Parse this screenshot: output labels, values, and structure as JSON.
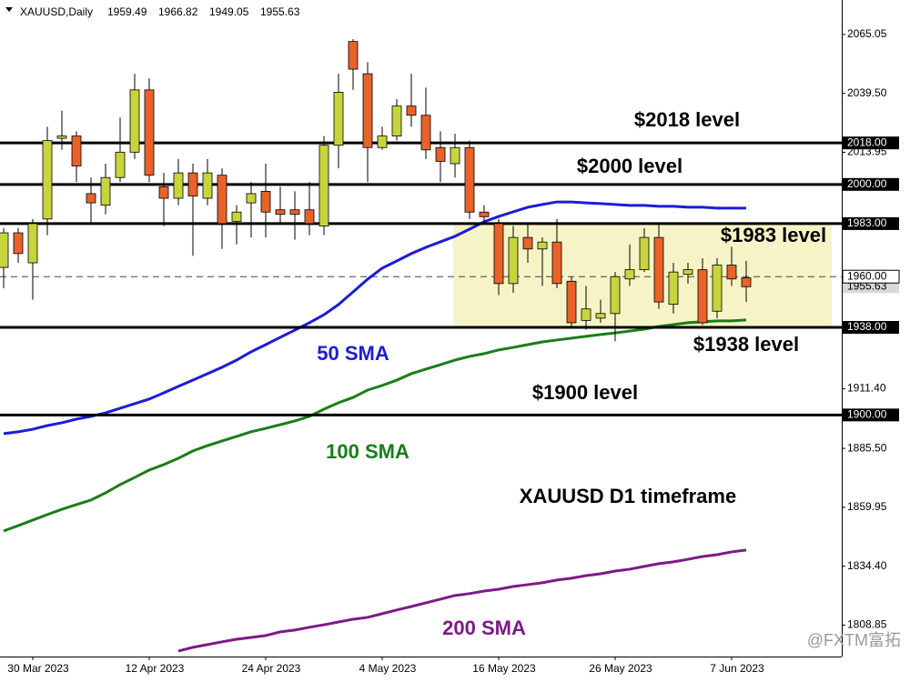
{
  "chart_data": {
    "type": "candlestick",
    "title": "XAUUSD,Daily",
    "categories": [
      null,
      null,
      "30 Mar 2023",
      null,
      null,
      null,
      null,
      null,
      null,
      null,
      "12 Apr 2023",
      null,
      null,
      null,
      null,
      null,
      null,
      null,
      "24 Apr 2023",
      null,
      null,
      null,
      null,
      null,
      null,
      null,
      "4 May 2023",
      null,
      null,
      null,
      null,
      null,
      null,
      null,
      "16 May 2023",
      null,
      null,
      null,
      null,
      null,
      null,
      null,
      "26 May 2023",
      null,
      null,
      null,
      null,
      null,
      null,
      null,
      "7 Jun 2023",
      null
    ],
    "ohlc": [
      [
        1964,
        1981,
        1955,
        1979
      ],
      [
        1979,
        1981,
        1966,
        1970
      ],
      [
        1966,
        1985,
        1950,
        1983
      ],
      [
        1985,
        2025,
        1978,
        2019
      ],
      [
        2020,
        2032,
        2015,
        2021
      ],
      [
        2021,
        2023,
        2001,
        2008
      ],
      [
        1996,
        2003,
        1983,
        1992
      ],
      [
        1991,
        2009,
        1987,
        2003
      ],
      [
        2003,
        2029,
        2001,
        2014
      ],
      [
        2014,
        2048,
        2011,
        2041
      ],
      [
        2041,
        2046,
        2001,
        2004
      ],
      [
        1999,
        2005,
        1982,
        1994
      ],
      [
        1994,
        2011,
        1991,
        2005
      ],
      [
        2005,
        2009,
        1969,
        1995
      ],
      [
        1994,
        2011,
        1991,
        2005
      ],
      [
        2004,
        2007,
        1972,
        1983
      ],
      [
        1984,
        1991,
        1974,
        1988
      ],
      [
        1992,
        2001,
        1977,
        1996
      ],
      [
        1997,
        2009,
        1977,
        1988
      ],
      [
        1989,
        1999,
        1983,
        1987
      ],
      [
        1989,
        1997,
        1976,
        1987
      ],
      [
        1989,
        2001,
        1978,
        1983
      ],
      [
        1982,
        2021,
        1978,
        2017
      ],
      [
        2017,
        2048,
        2007,
        2040
      ],
      [
        2062,
        2063,
        2041,
        2050
      ],
      [
        2048,
        2053,
        2001,
        2016
      ],
      [
        2016,
        2025,
        2015,
        2021
      ],
      [
        2021,
        2037,
        2019,
        2034
      ],
      [
        2034,
        2048,
        2025,
        2030
      ],
      [
        2030,
        2042,
        2011,
        2015
      ],
      [
        2016,
        2023,
        2001,
        2010
      ],
      [
        2009,
        2022,
        2003,
        2016
      ],
      [
        2016,
        2019,
        1985,
        1988
      ],
      [
        1988,
        1991,
        1983,
        1986
      ],
      [
        1983,
        1985,
        1952,
        1957
      ],
      [
        1957,
        1982,
        1953,
        1977
      ],
      [
        1977,
        1983,
        1966,
        1972
      ],
      [
        1972,
        1977,
        1956,
        1975
      ],
      [
        1975,
        1985,
        1955,
        1957
      ],
      [
        1958,
        1960,
        1938,
        1940
      ],
      [
        1941,
        1956,
        1937,
        1946
      ],
      [
        1942,
        1950,
        1940,
        1944
      ],
      [
        1944,
        1962,
        1932,
        1960
      ],
      [
        1959,
        1974,
        1956,
        1963
      ],
      [
        1963,
        1981,
        1962,
        1977
      ],
      [
        1977,
        1983,
        1946,
        1949
      ],
      [
        1948,
        1966,
        1944,
        1962
      ],
      [
        1961,
        1966,
        1957,
        1963
      ],
      [
        1963,
        1968,
        1939,
        1940
      ],
      [
        1945,
        1968,
        1942,
        1965
      ],
      [
        1965,
        1973,
        1956,
        1959
      ],
      [
        1959.49,
        1966.82,
        1949.05,
        1955.63
      ]
    ],
    "up_color": "#c8d43c",
    "down_color": "#e8622a",
    "series": [
      {
        "name": "50 SMA",
        "color": "#1c1cd8",
        "values": [
          1891.9,
          1892.7,
          1893.8,
          1895.4,
          1896.6,
          1898.2,
          1899.4,
          1900.9,
          1902.9,
          1904.9,
          1906.9,
          1909.6,
          1912.4,
          1915.1,
          1917.9,
          1920.7,
          1923.8,
          1927.4,
          1930.5,
          1933.7,
          1936.8,
          1940.0,
          1943.5,
          1947.9,
          1953.4,
          1958.9,
          1963.7,
          1966.8,
          1970.0,
          1972.7,
          1975.1,
          1977.5,
          1980.6,
          1983.8,
          1986.1,
          1988.1,
          1990.1,
          1991.3,
          1992.4,
          1992.4,
          1992.0,
          1991.7,
          1991.3,
          1990.9,
          1990.9,
          1990.5,
          1990.5,
          1990.1,
          1990.1,
          1989.7,
          1989.7,
          1989.7
        ]
      },
      {
        "name": "100 SMA",
        "color": "#1a7d1a",
        "values": [
          1849.7,
          1852.0,
          1854.4,
          1856.8,
          1859.1,
          1861.1,
          1863.1,
          1866.2,
          1869.8,
          1872.9,
          1876.1,
          1878.5,
          1881.2,
          1884.4,
          1886.7,
          1888.7,
          1890.7,
          1892.7,
          1894.2,
          1895.8,
          1897.4,
          1899.4,
          1902.5,
          1905.3,
          1907.6,
          1910.8,
          1912.8,
          1915.1,
          1917.9,
          1919.9,
          1921.8,
          1923.8,
          1925.4,
          1926.6,
          1928.2,
          1929.3,
          1930.5,
          1931.7,
          1932.5,
          1933.3,
          1934.1,
          1934.9,
          1935.6,
          1936.4,
          1937.2,
          1938.4,
          1939.2,
          1940.0,
          1940.4,
          1940.8,
          1940.8,
          1941.2
        ]
      },
      {
        "name": "200 SMA",
        "color": "#7d1a86",
        "values": [
          null,
          null,
          null,
          null,
          null,
          null,
          null,
          null,
          null,
          null,
          null,
          null,
          1797.6,
          1799.2,
          1800.4,
          1801.6,
          1802.7,
          1803.5,
          1804.3,
          1805.9,
          1806.7,
          1807.9,
          1809.0,
          1810.2,
          1811.4,
          1812.2,
          1813.8,
          1815.4,
          1816.9,
          1818.5,
          1820.1,
          1821.7,
          1822.5,
          1823.6,
          1824.4,
          1825.6,
          1826.4,
          1827.2,
          1828.4,
          1829.2,
          1830.3,
          1831.1,
          1832.3,
          1833.1,
          1834.3,
          1835.5,
          1836.3,
          1837.4,
          1838.6,
          1839.4,
          1840.6,
          1841.4
        ]
      }
    ],
    "ylim": [
      1796,
      2080
    ],
    "yticks": [
      {
        "value": 2065.05,
        "label": "2065.05"
      },
      {
        "value": 2039.5,
        "label": "2039.50"
      },
      {
        "value": 2013.95,
        "label": "2013.95"
      },
      {
        "value": 1911.4,
        "label": "1911.40"
      },
      {
        "value": 1885.5,
        "label": "1885.50"
      },
      {
        "value": 1859.95,
        "label": "1859.95"
      },
      {
        "value": 1834.4,
        "label": "1834.40"
      },
      {
        "value": 1808.85,
        "label": "1808.85"
      }
    ],
    "levels": [
      {
        "value": 2018,
        "label": "2018.00"
      },
      {
        "value": 2000,
        "label": "2000.00"
      },
      {
        "value": 1983,
        "label": "1983.00"
      },
      {
        "value": 1938,
        "label": "1938.00"
      },
      {
        "value": 1900,
        "label": "1900.00"
      }
    ],
    "level_color": "#000000",
    "range_zone": {
      "from": 1938,
      "to": 1983,
      "color": "#f6f4c6"
    },
    "dashed_level": {
      "value": 1960,
      "label": "1960.00"
    },
    "last_price": {
      "value": 1955.63,
      "label": "1955.63"
    },
    "annotations": [
      {
        "text": "$2018 level",
        "color": "#000000"
      },
      {
        "text": "$2000 level",
        "color": "#000000"
      },
      {
        "text": "$1983 level",
        "color": "#000000"
      },
      {
        "text": "$1938 level",
        "color": "#000000"
      },
      {
        "text": "$1900 level",
        "color": "#000000"
      },
      {
        "text": "50 SMA",
        "color": "#1c1cd8"
      },
      {
        "text": "100 SMA",
        "color": "#1a7d1a"
      },
      {
        "text": "XAUUSD D1 timeframe",
        "color": "#000000"
      },
      {
        "text": "200 SMA",
        "color": "#7d1a86"
      }
    ],
    "watermark": "@FXTM富拓"
  }
}
